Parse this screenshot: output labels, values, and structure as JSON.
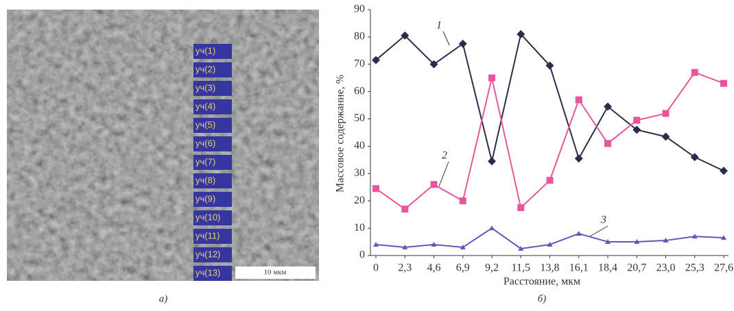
{
  "image": {
    "labels": [
      "уч(1)",
      "уч(2)",
      "уч(3)",
      "уч(4)",
      "уч(5)",
      "уч(6)",
      "уч(7)",
      "уч(8)",
      "уч(9)",
      "уч(10)",
      "уч(11)",
      "уч(12)",
      "уч(13)"
    ],
    "scale_bar": "10 мкм",
    "caption": "а)"
  },
  "chart_data": {
    "type": "line",
    "xlabel": "Расстояние, мкм",
    "ylabel": "Массовое содержание, %",
    "caption": "б)",
    "categories": [
      "0",
      "2,3",
      "4,6",
      "6,9",
      "9,2",
      "11,5",
      "13,8",
      "16,1",
      "18,4",
      "20,7",
      "23,0",
      "25,3",
      "27,6"
    ],
    "series": [
      {
        "name": "1",
        "color": "#2a2d4a",
        "marker": "diamond",
        "values": [
          71.5,
          80.5,
          70,
          77.5,
          34.5,
          81,
          69.5,
          35.5,
          54.5,
          46,
          43.5,
          36,
          31
        ]
      },
      {
        "name": "2",
        "color": "#e8559a",
        "marker": "square",
        "values": [
          24.5,
          17,
          26,
          20,
          65,
          17.5,
          27.5,
          57,
          41,
          49.5,
          52,
          67,
          63
        ]
      },
      {
        "name": "3",
        "color": "#5a5ab8",
        "marker": "triangle",
        "values": [
          4,
          3,
          4,
          3,
          10,
          2.5,
          4,
          8,
          5,
          5,
          5.5,
          7,
          6.5
        ]
      }
    ],
    "ylim": [
      0,
      90
    ],
    "yticks": [
      0,
      10,
      20,
      30,
      40,
      50,
      60,
      70,
      80,
      90
    ],
    "grid": false
  }
}
